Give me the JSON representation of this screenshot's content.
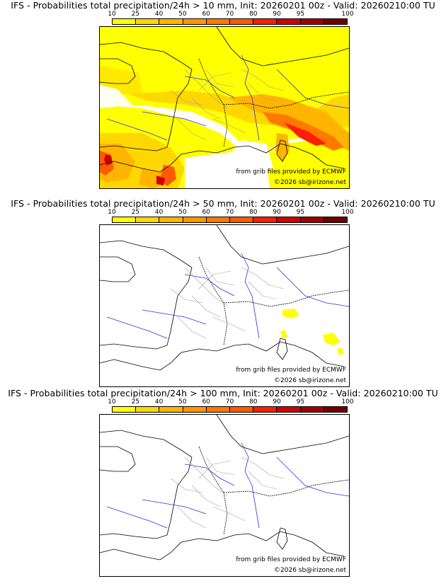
{
  "legend": {
    "ticks": [
      "10",
      "25",
      "40",
      "50",
      "60",
      "70",
      "80",
      "90",
      "95",
      "100"
    ],
    "colors": [
      "#ffff00",
      "#ffd700",
      "#ffb400",
      "#ff9600",
      "#ff7800",
      "#ff5a00",
      "#ff1e00",
      "#d20000",
      "#a00000",
      "#6e0000"
    ]
  },
  "map_colors": {
    "coast": "#000000",
    "border": "#000000",
    "rivers": "#3030e0",
    "regions": "#a0a0a0"
  },
  "panels": [
    {
      "title": "IFS - Probabilities total precipitation/24h > 10 mm, Init: 20260201 00z - Valid: 20260210:00 TU",
      "credit_source": "from grib files provided by ECMWF",
      "credit_copyright": "©2026 sb@irizone.net"
    },
    {
      "title": "IFS - Probabilities total precipitation/24h > 50 mm, Init: 20260201 00z - Valid: 20260210:00 TU",
      "credit_source": "from grib files provided by ECMWF",
      "credit_copyright": "©2026 sb@irizone.net"
    },
    {
      "title": "IFS - Probabilities total precipitation/24h > 100 mm, Init: 20260201 00z - Valid: 20260210:00 TU",
      "credit_source": "from grib files provided by ECMWF",
      "credit_copyright": "©2026 sb@irizone.net"
    }
  ]
}
